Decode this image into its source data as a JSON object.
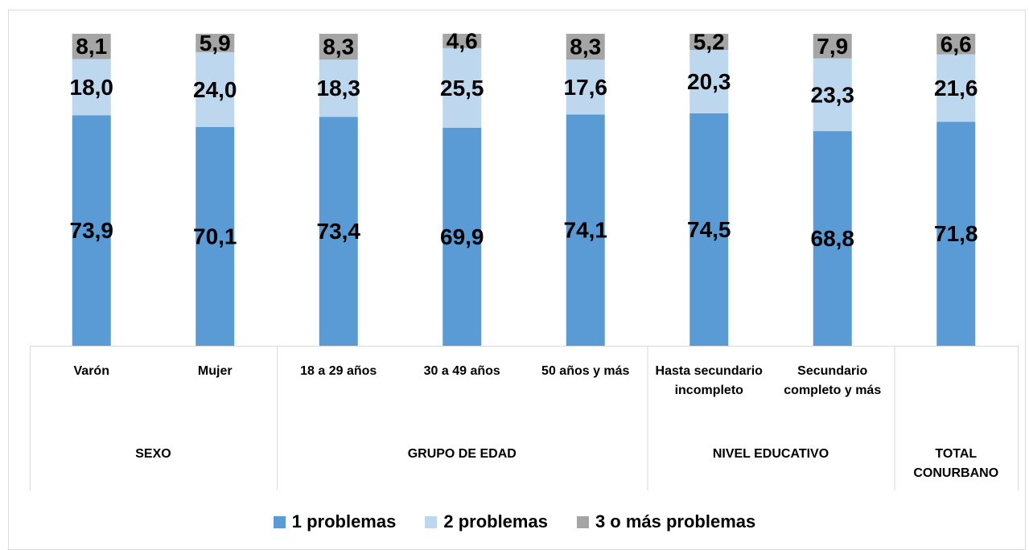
{
  "chart_data": {
    "type": "stacked_bar",
    "groups": [
      {
        "name": "SEXO",
        "categories": [
          "Varón",
          "Mujer"
        ]
      },
      {
        "name": "GRUPO DE EDAD",
        "categories": [
          "18 a 29 años",
          "30 a 49 años",
          "50 años y más"
        ]
      },
      {
        "name": "NIVEL EDUCATIVO",
        "categories": [
          "Hasta secundario incompleto",
          "Secundario completo y más"
        ]
      },
      {
        "name": "TOTAL CONURBANO",
        "categories": [
          null
        ]
      }
    ],
    "series": [
      {
        "name": "1 problemas",
        "color": "#5b9bd5",
        "values": [
          73.9,
          70.1,
          73.4,
          69.9,
          74.1,
          74.5,
          68.8,
          71.8
        ],
        "value_labels": [
          "73,9",
          "70,1",
          "73,4",
          "69,9",
          "74,1",
          "74,5",
          "68,8",
          "71,8"
        ]
      },
      {
        "name": "2 problemas",
        "color": "#bdd7ee",
        "values": [
          18.0,
          24.0,
          18.3,
          25.5,
          17.6,
          20.3,
          23.3,
          21.6
        ],
        "value_labels": [
          "18,0",
          "24,0",
          "18,3",
          "25,5",
          "17,6",
          "20,3",
          "23,3",
          "21,6"
        ]
      },
      {
        "name": "3 o más problemas",
        "color": "#a5a5a5",
        "values": [
          8.1,
          5.9,
          8.3,
          4.6,
          8.3,
          5.2,
          7.9,
          6.6
        ],
        "value_labels": [
          "8,1",
          "5,9",
          "8,3",
          "4,6",
          "8,3",
          "5,2",
          "7,9",
          "6,6"
        ]
      }
    ],
    "ylim": [
      0,
      100
    ],
    "legend": "bottom"
  }
}
